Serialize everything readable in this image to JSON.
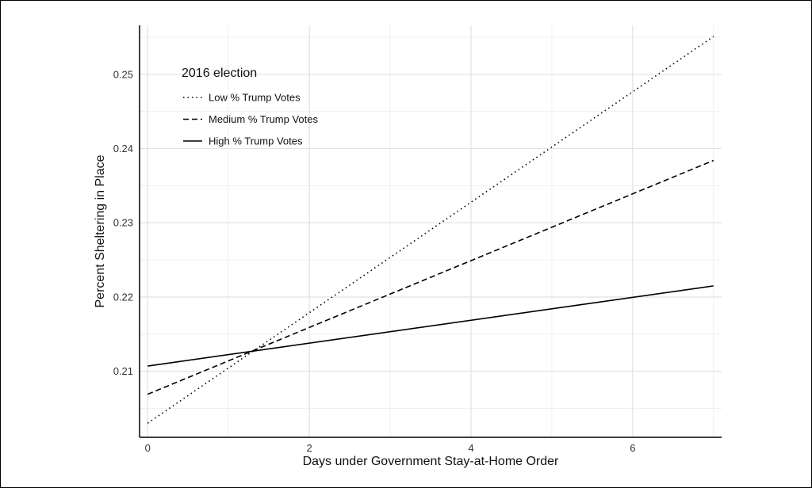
{
  "chart_data": {
    "type": "line",
    "xlabel": "Days under Government Stay-at-Home Order",
    "ylabel": "Percent Sheltering in Place",
    "xlim": [
      -0.1,
      7.1
    ],
    "ylim": [
      0.2011,
      0.2566
    ],
    "x_ticks": [
      0,
      2,
      4,
      6
    ],
    "x_tick_labels": [
      "0",
      "2",
      "4",
      "6"
    ],
    "y_ticks": [
      0.21,
      0.22,
      0.23,
      0.24,
      0.25
    ],
    "y_tick_labels": [
      "0.21",
      "0.22",
      "0.23",
      "0.24",
      "0.25"
    ],
    "grid": true,
    "legend": {
      "title": "2016 election",
      "placement": "top-left"
    },
    "series": [
      {
        "name": "Low % Trump Votes",
        "line_style": "dotted",
        "color": "#000000",
        "x": [
          0,
          7
        ],
        "y": [
          0.203,
          0.2551
        ]
      },
      {
        "name": "Medium % Trump Votes",
        "line_style": "dashed",
        "color": "#000000",
        "x": [
          0,
          7
        ],
        "y": [
          0.2069,
          0.2384
        ]
      },
      {
        "name": "High % Trump Votes",
        "line_style": "solid",
        "color": "#000000",
        "x": [
          0,
          7
        ],
        "y": [
          0.2107,
          0.2215
        ]
      }
    ]
  }
}
